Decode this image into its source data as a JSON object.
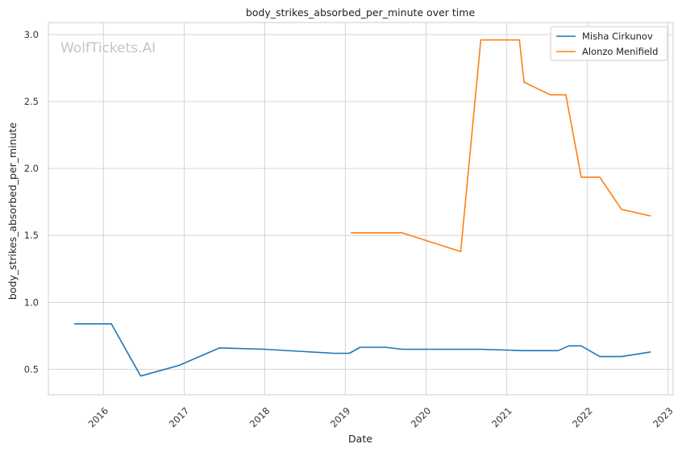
{
  "chart_data": {
    "type": "line",
    "title": "body_strikes_absorbed_per_minute over time",
    "xlabel": "Date",
    "ylabel": "body_strikes_absorbed_per_minute",
    "watermark": "WolfTickets.AI",
    "xlim": [
      "2015-04-27",
      "2023-01-24"
    ],
    "ylim": [
      0.31,
      3.09
    ],
    "x_ticks": [
      "2016",
      "2017",
      "2018",
      "2019",
      "2020",
      "2021",
      "2022",
      "2023"
    ],
    "y_ticks": [
      "0.5",
      "1.0",
      "1.5",
      "2.0",
      "2.5",
      "3.0"
    ],
    "grid": true,
    "legend_position": "top-right",
    "series": [
      {
        "name": "Misha Cirkunov",
        "color": "#1f77b4",
        "points": [
          {
            "x": "2015-08-22",
            "y": 0.84
          },
          {
            "x": "2016-02-06",
            "y": 0.84
          },
          {
            "x": "2016-06-18",
            "y": 0.45
          },
          {
            "x": "2016-12-10",
            "y": 0.53
          },
          {
            "x": "2017-06-10",
            "y": 0.66
          },
          {
            "x": "2018-01-01",
            "y": 0.65
          },
          {
            "x": "2018-11-10",
            "y": 0.62
          },
          {
            "x": "2019-01-19",
            "y": 0.62
          },
          {
            "x": "2019-03-09",
            "y": 0.665
          },
          {
            "x": "2019-07-01",
            "y": 0.665
          },
          {
            "x": "2019-09-14",
            "y": 0.65
          },
          {
            "x": "2020-09-05",
            "y": 0.65
          },
          {
            "x": "2021-03-20",
            "y": 0.64
          },
          {
            "x": "2021-08-21",
            "y": 0.64
          },
          {
            "x": "2021-10-09",
            "y": 0.675
          },
          {
            "x": "2021-12-04",
            "y": 0.675
          },
          {
            "x": "2022-02-26",
            "y": 0.595
          },
          {
            "x": "2022-06-04",
            "y": 0.595
          },
          {
            "x": "2022-10-15",
            "y": 0.63
          }
        ]
      },
      {
        "name": "Alonzo Menifield",
        "color": "#ff7f0e",
        "points": [
          {
            "x": "2019-01-26",
            "y": 1.52
          },
          {
            "x": "2019-09-14",
            "y": 1.52
          },
          {
            "x": "2020-06-06",
            "y": 1.38
          },
          {
            "x": "2020-09-05",
            "y": 2.96
          },
          {
            "x": "2021-02-27",
            "y": 2.96
          },
          {
            "x": "2021-03-20",
            "y": 2.645
          },
          {
            "x": "2021-07-17",
            "y": 2.55
          },
          {
            "x": "2021-09-25",
            "y": 2.55
          },
          {
            "x": "2021-12-04",
            "y": 1.935
          },
          {
            "x": "2022-02-26",
            "y": 1.935
          },
          {
            "x": "2022-06-04",
            "y": 1.695
          },
          {
            "x": "2022-10-15",
            "y": 1.645
          }
        ]
      }
    ]
  }
}
